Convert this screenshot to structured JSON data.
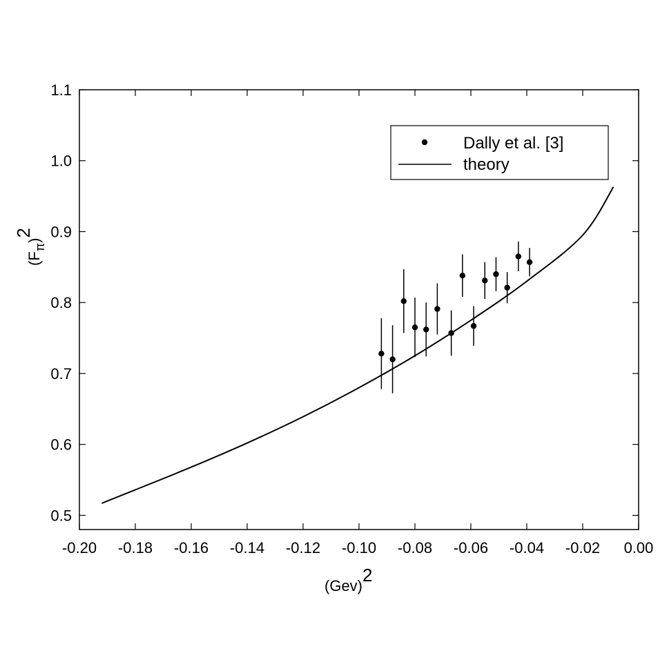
{
  "chart_data": {
    "type": "scatter",
    "title": "",
    "xlabel": {
      "base": "(Gev)",
      "sup": "2"
    },
    "ylabel": {
      "open": "(F",
      "sub": "π",
      "close": ")",
      "sup": "2"
    },
    "xlim": [
      -0.2,
      0.0
    ],
    "ylim": [
      0.48,
      1.1
    ],
    "xticks": [
      -0.2,
      -0.18,
      -0.16,
      -0.14,
      -0.12,
      -0.1,
      -0.08,
      -0.06,
      -0.04,
      -0.02,
      0.0
    ],
    "xtick_labels": [
      "-0.20",
      "-0.18",
      "-0.16",
      "-0.14",
      "-0.12",
      "-0.10",
      "-0.08",
      "-0.06",
      "-0.04",
      "-0.02",
      "0.00"
    ],
    "yticks": [
      0.5,
      0.6,
      0.7,
      0.8,
      0.9,
      1.0,
      1.1
    ],
    "ytick_labels": [
      "0.5",
      "0.6",
      "0.7",
      "0.8",
      "0.9",
      "1.0",
      "1.1"
    ],
    "grid": false,
    "legend_position": "top-right",
    "series": [
      {
        "name": "Dally et al. [3]",
        "kind": "points-with-error-bars",
        "x": [
          -0.092,
          -0.088,
          -0.084,
          -0.08,
          -0.076,
          -0.072,
          -0.067,
          -0.059,
          -0.063,
          -0.055,
          -0.051,
          -0.047,
          -0.043,
          -0.039
        ],
        "y": [
          0.728,
          0.72,
          0.802,
          0.765,
          0.762,
          0.791,
          0.757,
          0.767,
          0.838,
          0.831,
          0.84,
          0.821,
          0.865,
          0.857
        ],
        "yerr": [
          0.05,
          0.048,
          0.045,
          0.042,
          0.038,
          0.036,
          0.032,
          0.028,
          0.03,
          0.026,
          0.024,
          0.022,
          0.021,
          0.02
        ]
      },
      {
        "name": "theory",
        "kind": "line",
        "x": [
          -0.192,
          -0.18,
          -0.16,
          -0.14,
          -0.12,
          -0.1,
          -0.08,
          -0.06,
          -0.04,
          -0.02,
          -0.009
        ],
        "y": [
          0.517,
          0.536,
          0.568,
          0.602,
          0.639,
          0.68,
          0.725,
          0.775,
          0.83,
          0.895,
          0.963
        ]
      }
    ]
  }
}
